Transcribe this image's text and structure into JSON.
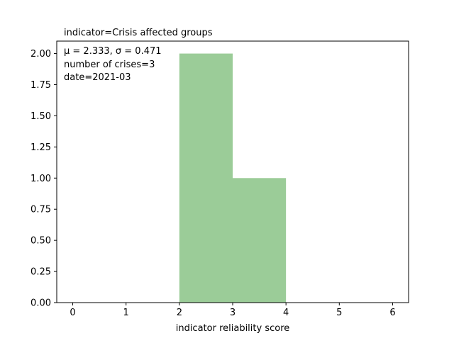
{
  "chart_data": {
    "type": "bar",
    "title": "indicator=Crisis affected groups",
    "xlabel": "indicator reliability score",
    "ylabel": "",
    "bins": [
      {
        "x0": 2,
        "x1": 3,
        "value": 2
      },
      {
        "x0": 3,
        "x1": 4,
        "value": 1
      }
    ],
    "xlim": [
      -0.3,
      6.3
    ],
    "ylim": [
      0,
      2.1
    ],
    "xticks": [
      0,
      1,
      2,
      3,
      4,
      5,
      6
    ],
    "xtick_labels": [
      "0",
      "1",
      "2",
      "3",
      "4",
      "5",
      "6"
    ],
    "yticks": [
      0,
      0.25,
      0.5,
      0.75,
      1.0,
      1.25,
      1.5,
      1.75,
      2.0
    ],
    "ytick_labels": [
      "0.00",
      "0.25",
      "0.50",
      "0.75",
      "1.00",
      "1.25",
      "1.50",
      "1.75",
      "2.00"
    ],
    "annotation_lines": [
      "μ = 2.333,  σ = 0.471",
      "number of crises=3",
      "date=2021-03"
    ],
    "bar_color": "#9bcc98",
    "grid": false,
    "legend": "none"
  }
}
